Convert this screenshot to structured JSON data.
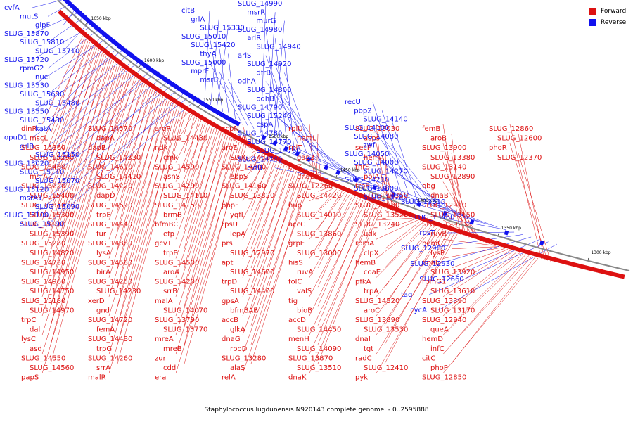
{
  "caption": "Staphylococcus lugdunensis N920143 complete genome. - 0..2595888",
  "legend": [
    {
      "label": "Forward",
      "color": "#dd1111"
    },
    {
      "label": "Reverse",
      "color": "#1111ee"
    }
  ],
  "ticks": [
    "1650 kbp",
    "1600 kbp",
    "1550 kbp",
    "1500 kbp",
    "1450 kbp",
    "1400 kbp",
    "1350 kbp",
    "1300 kbp"
  ],
  "reverse_labels": [
    "cvfA",
    "mutS",
    "glpF",
    "SLUG_15870",
    "SLUG_15810",
    "SLUG_15710",
    "SLUG_15720",
    "rpmG2",
    "nucI",
    "SLUG_15530",
    "SLUG_15630",
    "SLUG_15480",
    "SLUG_15550",
    "SLUG_15430",
    "katA",
    "opuD1",
    "grlB",
    "SLUG_15150",
    "SLUG_15020",
    "SLUG_15110",
    "SLUG_15070",
    "SLUG_15120",
    "msrA1",
    "SLUG_15090",
    "SLUG_15100",
    "SLUG_15190",
    "citB",
    "grlA",
    "SLUG_15330",
    "SLUG_15010",
    "SLUG_15420",
    "thyA",
    "SLUG_15000",
    "mprF",
    "msrB",
    "SLUG_14990",
    "msrR",
    "murG",
    "SLUG_14980",
    "arlR",
    "SLUG_14940",
    "arlS",
    "SLUG_14920",
    "dfrB",
    "odhA",
    "SLUG_14800",
    "odhB",
    "SLUG_14790",
    "SLUG_15240",
    "cspA",
    "SLUG_14780",
    "SLUG_14770",
    "SLUG_14760",
    "SLUG_14740",
    "cvfB",
    "recU",
    "pbp2",
    "SLUG_14140",
    "SLUG_14100",
    "SLUG_14080",
    "zwf",
    "SLUG_14050",
    "SLUG_14000",
    "SLUG_14270",
    "SLUG_14210",
    "SLUG_13800",
    "SLUG_13780",
    "SLUG_13810",
    "SLUG_13460",
    "rpsT",
    "SLUG_12900",
    "SLUG_12930",
    "SLUG_12660",
    "tag",
    "cycA"
  ],
  "forward_labels": [
    "dinR",
    "mscL",
    "SLUG_15360",
    "SLUG_15290",
    "SLUG_15460",
    "msrA2",
    "SLUG_15220",
    "SLUG_15400",
    "SLUG_15340",
    "SLUG_15300",
    "SLUG_14910",
    "SLUG_15390",
    "SLUG_15280",
    "SLUG_14820",
    "SLUG_14730",
    "SLUG_14950",
    "SLUG_14960",
    "SLUG_14750",
    "SLUG_15180",
    "SLUG_14970",
    "trpC",
    "dal",
    "lysC",
    "asd",
    "SLUG_14550",
    "SLUG_14560",
    "papS",
    "SLUG_14570",
    "dapA",
    "dapB",
    "SLUG_14330",
    "SLUG_14610",
    "SLUG_14410",
    "SLUG_14220",
    "dapD",
    "SLUG_14690",
    "trpE",
    "SLUG_14440",
    "fur",
    "SLUG_14880",
    "lysA",
    "SLUG_14580",
    "birA",
    "SLUG_14250",
    "SLUG_14230",
    "xerD",
    "gnd",
    "SLUG_14720",
    "femA",
    "SLUG_14480",
    "trpG",
    "SLUG_14260",
    "srrA",
    "malR",
    "argR",
    "SLUG_14430",
    "ndk",
    "cmk",
    "SLUG_14590",
    "asnS",
    "SLUG_14290",
    "SLUG_14110",
    "SLUG_14150",
    "brmB",
    "bfmBC",
    "efp",
    "gcvT",
    "trpB",
    "SLUG_14500",
    "aroA",
    "SLUG_14200",
    "srrB",
    "malA",
    "SLUG_14070",
    "SLUG_13790",
    "SLUG_13770",
    "mreA",
    "mreB",
    "zur",
    "cdd",
    "era",
    "ccpN",
    "hrcA",
    "aroE",
    "SLUG_14510",
    "SLUG_14300",
    "ebpS",
    "SLUG_14160",
    "SLUG_13820",
    "pbpF",
    "yqfL",
    "rpsU",
    "lepA",
    "prs",
    "SLUG_12970",
    "apt",
    "SLUG_14600",
    "trpD",
    "SLUG_14400",
    "gpsA",
    "bfmBAB",
    "accB",
    "glkA",
    "dnaG",
    "rpoD",
    "SLUG_13280",
    "alaS",
    "relA",
    "rplU",
    "hemL",
    "rplT",
    "gap2",
    "citZ",
    "dnaE",
    "SLUG_12260",
    "SLUG_14420",
    "hup",
    "SLUG_14010",
    "accC",
    "SLUG_13860",
    "grpE",
    "SLUG_13000",
    "hisS",
    "ruvA",
    "folC",
    "valS",
    "tig",
    "bioB",
    "accD",
    "SLUG_14450",
    "menH",
    "SLUG_14090",
    "SLUG_13870",
    "SLUG_13510",
    "dnaK",
    "SLUG_13030",
    "asps",
    "secF",
    "hemA",
    "thrS",
    "polA",
    "trpF",
    "SLUG_14350",
    "SLUG_13880",
    "SLUG_13520",
    "SLUG_13240",
    "udk",
    "rpmA",
    "clpX",
    "hemB",
    "coaE",
    "pfkA",
    "trpA",
    "SLUG_14520",
    "aroC",
    "SLUG_13890",
    "SLUG_13530",
    "dnaI",
    "tgt",
    "radC",
    "SLUG_12410",
    "pyk",
    "femB",
    "aroB",
    "SLUG_13900",
    "SLUG_13380",
    "SLUG_13140",
    "SLUG_12890",
    "obg",
    "dnaB",
    "SLUG_12910",
    "SLUG_13150",
    "SLUG_12920",
    "ruvB",
    "hemC",
    "lysP",
    "dnaL",
    "SLUG_13920",
    "rpmG1",
    "SLUG_13610",
    "SLUG_13390",
    "SLUG_13170",
    "SLUG_12940",
    "queA",
    "hemD",
    "infC",
    "citC",
    "phoP",
    "SLUG_12850",
    "SLUG_12860",
    "SLUG_12600",
    "phoR",
    "SLUG_12370"
  ]
}
